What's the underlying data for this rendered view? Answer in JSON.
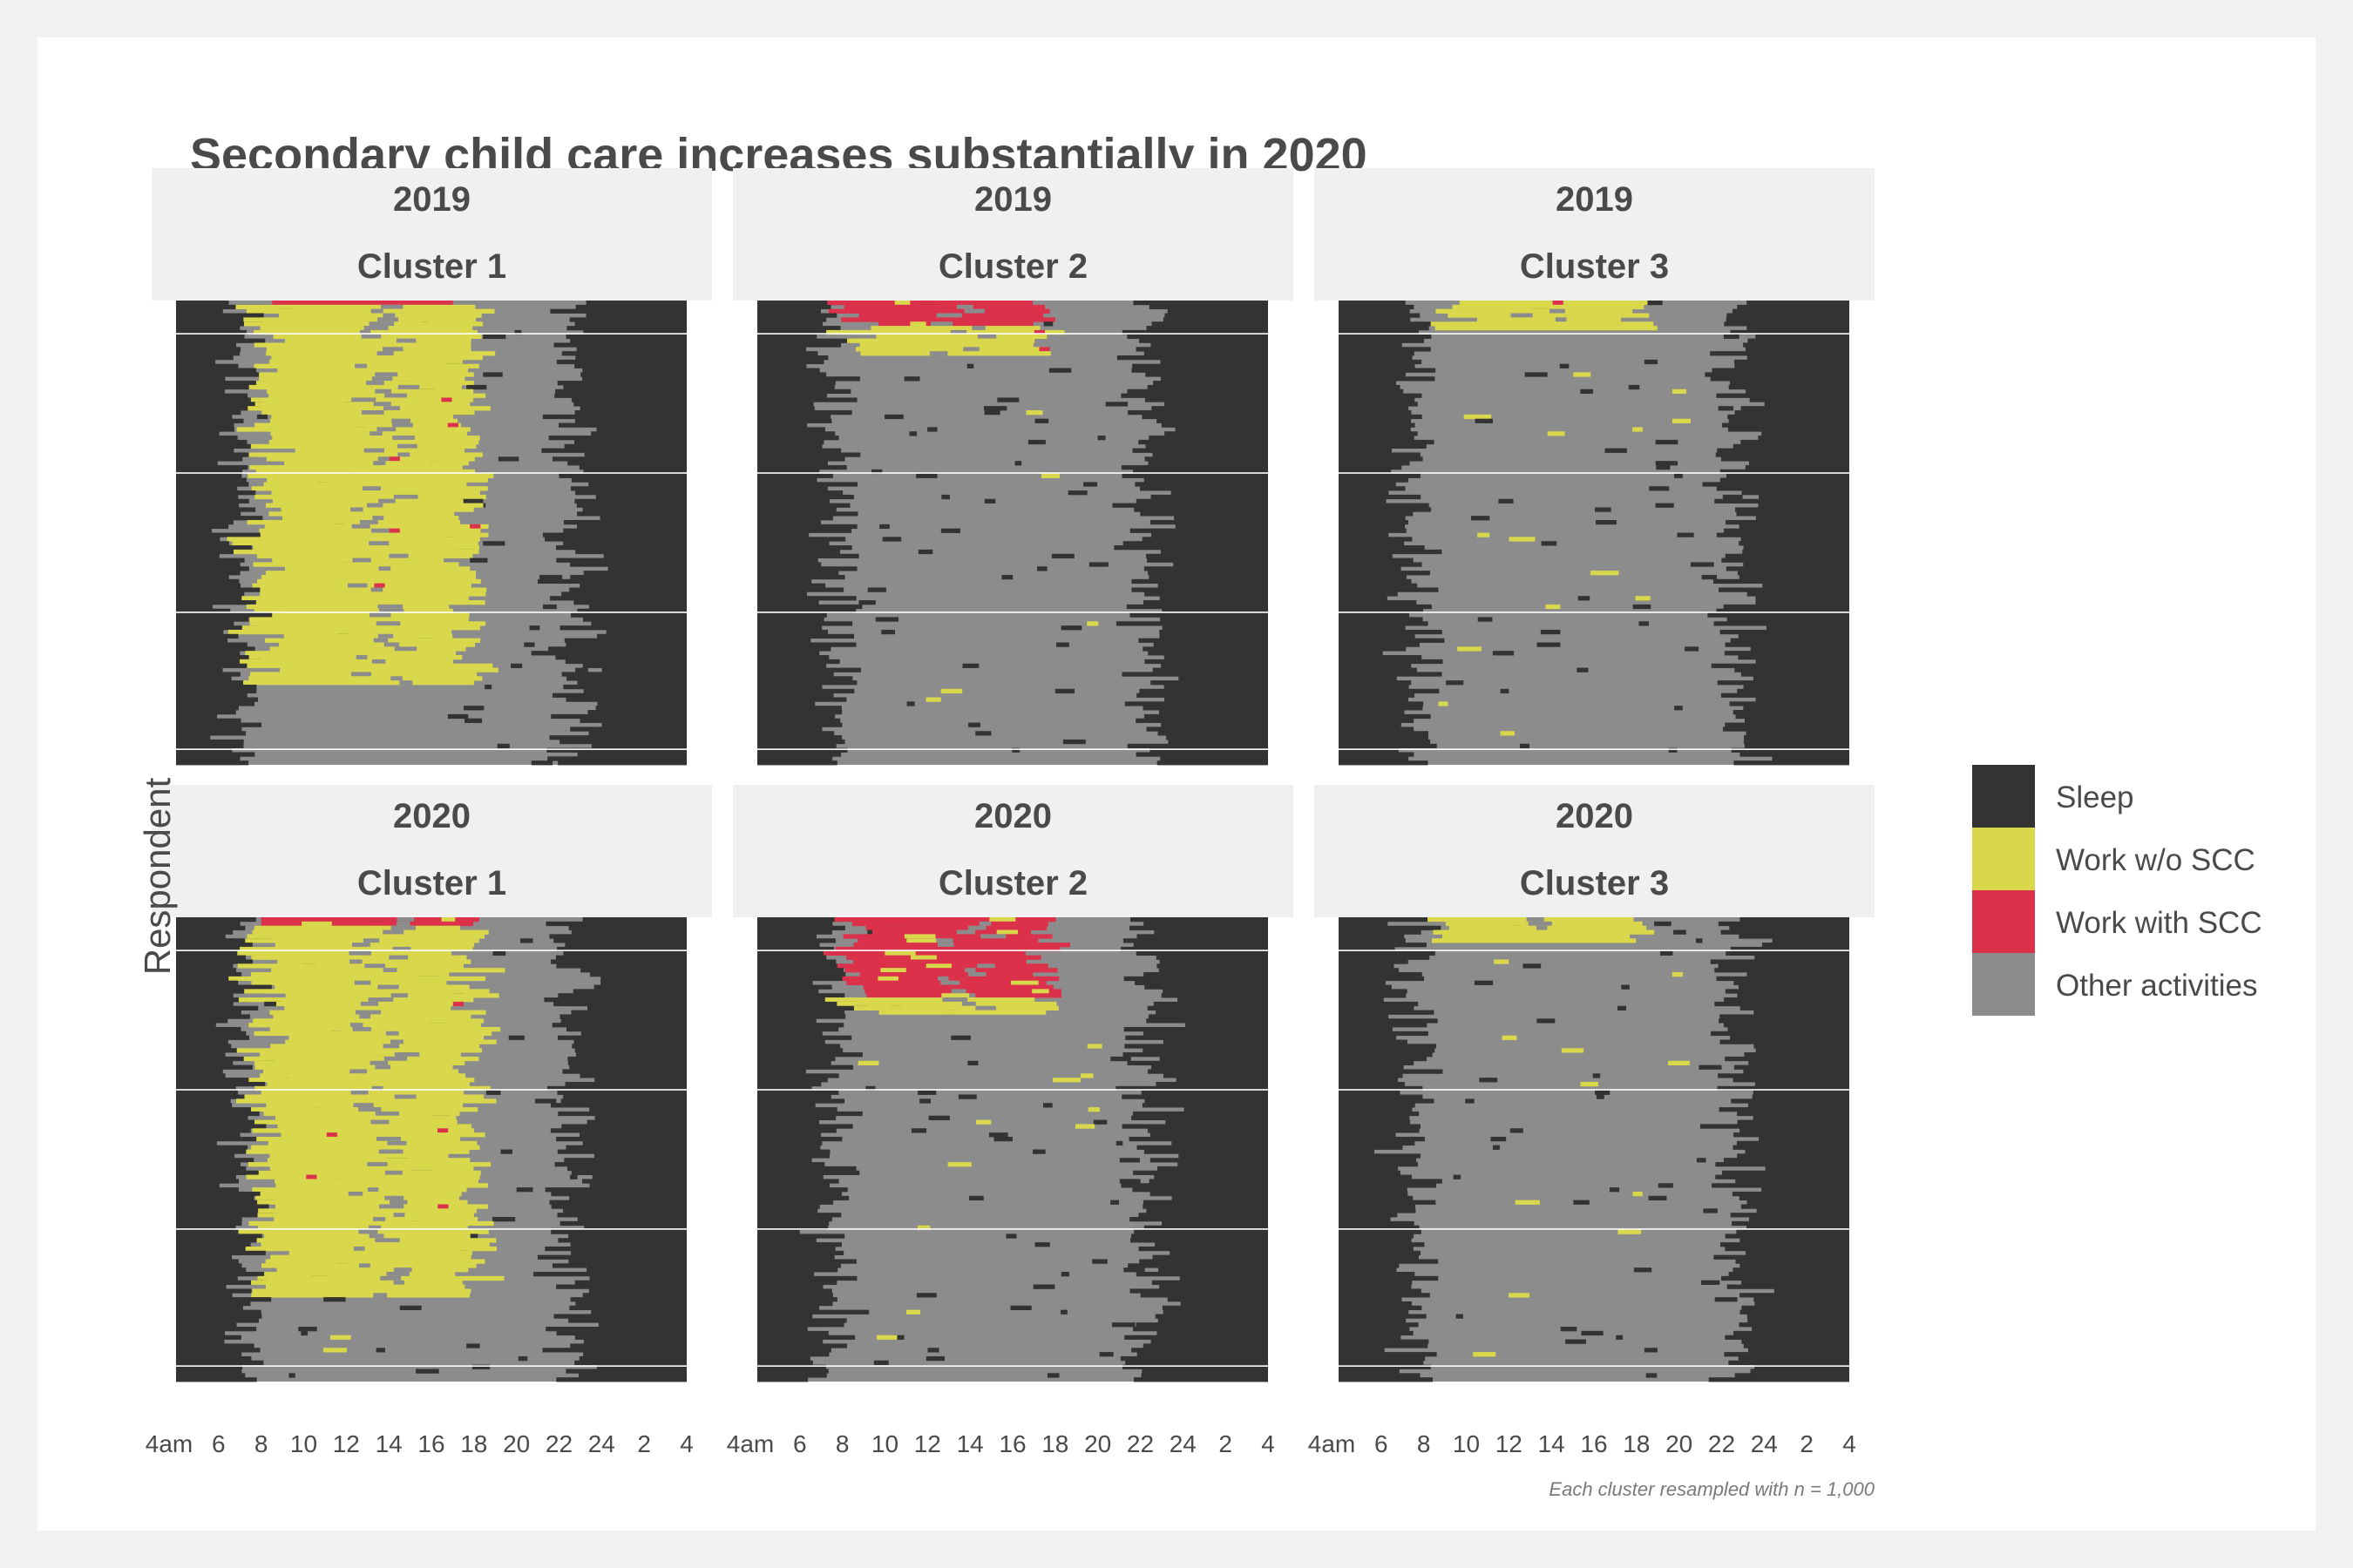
{
  "chart_data": {
    "type": "heatmap",
    "title": "Secondary child care increases substantially in 2020",
    "ylabel": "Respondent",
    "xlabel": "",
    "caption": "Each cluster resampled with n = 1,000",
    "x_ticks": [
      "4am",
      "6",
      "8",
      "10",
      "12",
      "14",
      "16",
      "18",
      "20",
      "22",
      "24",
      "2",
      "4"
    ],
    "x_range": [
      4,
      28
    ],
    "respondents_per_panel": 1000,
    "categories": [
      {
        "name": "Sleep",
        "color": "#333333"
      },
      {
        "name": "Work w/o SCC",
        "color": "#d9d84c"
      },
      {
        "name": "Work with SCC",
        "color": "#db314b"
      },
      {
        "name": "Other activities",
        "color": "#8c8c8c"
      }
    ],
    "panels": [
      {
        "year": "2019",
        "cluster": "Cluster 1",
        "wake_hour": 7.2,
        "sleep_hour": 22.6,
        "work_start": 8.0,
        "work_end": 18.0,
        "work_share": 0.82,
        "scc_share": 0.01
      },
      {
        "year": "2019",
        "cluster": "Cluster 2",
        "wake_hour": 7.6,
        "sleep_hour": 22.2,
        "work_start": 8.5,
        "work_end": 17.5,
        "work_share": 0.06,
        "scc_share": 0.05
      },
      {
        "year": "2019",
        "cluster": "Cluster 3",
        "wake_hour": 7.6,
        "sleep_hour": 22.6,
        "work_start": 9.0,
        "work_end": 18.0,
        "work_share": 0.06,
        "scc_share": 0.0
      },
      {
        "year": "2020",
        "cluster": "Cluster 1",
        "wake_hour": 7.4,
        "sleep_hour": 22.4,
        "work_start": 8.0,
        "work_end": 18.0,
        "work_share": 0.8,
        "scc_share": 0.02
      },
      {
        "year": "2020",
        "cluster": "Cluster 2",
        "wake_hour": 7.6,
        "sleep_hour": 22.4,
        "work_start": 8.5,
        "work_end": 17.5,
        "work_share": 0.04,
        "scc_share": 0.17
      },
      {
        "year": "2020",
        "cluster": "Cluster 3",
        "wake_hour": 7.6,
        "sleep_hour": 22.6,
        "work_start": 9.0,
        "work_end": 18.0,
        "work_share": 0.05,
        "scc_share": 0.0
      }
    ]
  }
}
